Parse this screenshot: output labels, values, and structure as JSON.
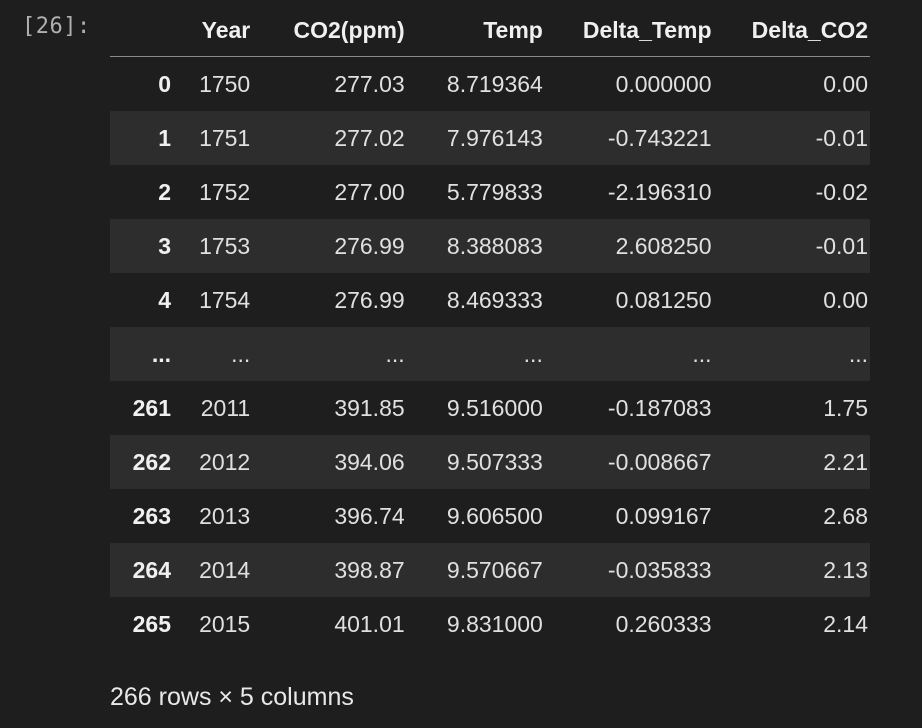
{
  "cell": {
    "prompt": "[26]:"
  },
  "table": {
    "columns": [
      "",
      "Year",
      "CO2(ppm)",
      "Temp",
      "Delta_Temp",
      "Delta_CO2"
    ],
    "rows": [
      [
        "0",
        "1750",
        "277.03",
        "8.719364",
        "0.000000",
        "0.00"
      ],
      [
        "1",
        "1751",
        "277.02",
        "7.976143",
        "-0.743221",
        "-0.01"
      ],
      [
        "2",
        "1752",
        "277.00",
        "5.779833",
        "-2.196310",
        "-0.02"
      ],
      [
        "3",
        "1753",
        "276.99",
        "8.388083",
        "2.608250",
        "-0.01"
      ],
      [
        "4",
        "1754",
        "276.99",
        "8.469333",
        "0.081250",
        "0.00"
      ],
      [
        "...",
        "...",
        "...",
        "...",
        "...",
        "..."
      ],
      [
        "261",
        "2011",
        "391.85",
        "9.516000",
        "-0.187083",
        "1.75"
      ],
      [
        "262",
        "2012",
        "394.06",
        "9.507333",
        "-0.008667",
        "2.21"
      ],
      [
        "263",
        "2013",
        "396.74",
        "9.606500",
        "0.099167",
        "2.68"
      ],
      [
        "264",
        "2014",
        "398.87",
        "9.570667",
        "-0.035833",
        "2.13"
      ],
      [
        "265",
        "2015",
        "401.01",
        "9.831000",
        "0.260333",
        "2.14"
      ]
    ]
  },
  "footer": {
    "summary": "266 rows × 5 columns"
  }
}
